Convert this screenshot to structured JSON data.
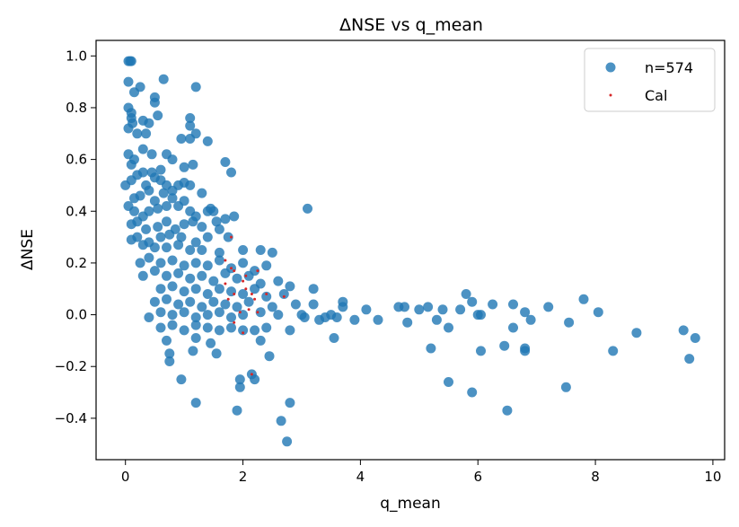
{
  "chart_data": {
    "type": "scatter",
    "title": "ΔNSE vs q_mean",
    "xlabel": "q_mean",
    "ylabel": "ΔNSE",
    "xlim": [
      -0.5,
      10.2
    ],
    "ylim": [
      -0.56,
      1.06
    ],
    "xticks": [
      0,
      2,
      4,
      6,
      8,
      10
    ],
    "xtick_labels": [
      "0",
      "2",
      "4",
      "6",
      "8",
      "10"
    ],
    "yticks": [
      -0.4,
      -0.2,
      0.0,
      0.2,
      0.4,
      0.6,
      0.8,
      1.0
    ],
    "ytick_labels": [
      "−0.4",
      "−0.2",
      "0.0",
      "0.2",
      "0.4",
      "0.6",
      "0.8",
      "1.0"
    ],
    "grid": false,
    "legend_position": "top-right",
    "legend": [
      "n=574",
      "Cal"
    ],
    "series": [
      {
        "name": "n=574",
        "color": "#1f77b4",
        "points": [
          [
            0.05,
            0.98
          ],
          [
            0.08,
            0.98
          ],
          [
            0.1,
            0.98
          ],
          [
            0.05,
            0.9
          ],
          [
            0.15,
            0.86
          ],
          [
            0.25,
            0.88
          ],
          [
            0.65,
            0.91
          ],
          [
            1.2,
            0.88
          ],
          [
            0.05,
            0.8
          ],
          [
            0.1,
            0.78
          ],
          [
            0.1,
            0.76
          ],
          [
            0.12,
            0.74
          ],
          [
            0.05,
            0.72
          ],
          [
            0.2,
            0.7
          ],
          [
            0.3,
            0.75
          ],
          [
            0.4,
            0.74
          ],
          [
            0.5,
            0.82
          ],
          [
            0.5,
            0.84
          ],
          [
            0.55,
            0.77
          ],
          [
            0.35,
            0.7
          ],
          [
            1.1,
            0.76
          ],
          [
            1.1,
            0.73
          ],
          [
            1.2,
            0.7
          ],
          [
            0.95,
            0.68
          ],
          [
            1.1,
            0.68
          ],
          [
            1.4,
            0.67
          ],
          [
            0.05,
            0.62
          ],
          [
            0.1,
            0.58
          ],
          [
            0.15,
            0.6
          ],
          [
            0.3,
            0.64
          ],
          [
            0.45,
            0.62
          ],
          [
            0.6,
            0.56
          ],
          [
            0.7,
            0.62
          ],
          [
            0.8,
            0.6
          ],
          [
            1.0,
            0.57
          ],
          [
            1.15,
            0.58
          ],
          [
            1.7,
            0.59
          ],
          [
            1.8,
            0.55
          ],
          [
            0.0,
            0.5
          ],
          [
            0.1,
            0.52
          ],
          [
            0.2,
            0.54
          ],
          [
            0.3,
            0.55
          ],
          [
            0.35,
            0.5
          ],
          [
            0.45,
            0.55
          ],
          [
            0.5,
            0.53
          ],
          [
            0.6,
            0.52
          ],
          [
            0.7,
            0.5
          ],
          [
            0.8,
            0.48
          ],
          [
            0.9,
            0.5
          ],
          [
            1.0,
            0.51
          ],
          [
            1.1,
            0.5
          ],
          [
            0.15,
            0.45
          ],
          [
            0.25,
            0.46
          ],
          [
            0.4,
            0.48
          ],
          [
            0.5,
            0.44
          ],
          [
            0.65,
            0.47
          ],
          [
            0.8,
            0.45
          ],
          [
            1.0,
            0.44
          ],
          [
            1.3,
            0.47
          ],
          [
            0.05,
            0.42
          ],
          [
            0.15,
            0.4
          ],
          [
            0.3,
            0.38
          ],
          [
            0.4,
            0.4
          ],
          [
            0.55,
            0.41
          ],
          [
            0.7,
            0.42
          ],
          [
            0.9,
            0.42
          ],
          [
            1.1,
            0.4
          ],
          [
            1.2,
            0.38
          ],
          [
            1.4,
            0.4
          ],
          [
            1.45,
            0.41
          ],
          [
            1.5,
            0.4
          ],
          [
            1.85,
            0.38
          ],
          [
            1.7,
            0.37
          ],
          [
            3.1,
            0.41
          ],
          [
            0.1,
            0.35
          ],
          [
            0.2,
            0.36
          ],
          [
            0.35,
            0.33
          ],
          [
            0.55,
            0.34
          ],
          [
            0.7,
            0.36
          ],
          [
            0.85,
            0.33
          ],
          [
            1.0,
            0.35
          ],
          [
            1.15,
            0.36
          ],
          [
            1.3,
            0.34
          ],
          [
            1.55,
            0.36
          ],
          [
            1.6,
            0.33
          ],
          [
            0.2,
            0.3
          ],
          [
            0.4,
            0.28
          ],
          [
            0.6,
            0.3
          ],
          [
            0.75,
            0.31
          ],
          [
            0.95,
            0.3
          ],
          [
            1.2,
            0.28
          ],
          [
            1.4,
            0.3
          ],
          [
            1.75,
            0.3
          ],
          [
            0.1,
            0.29
          ],
          [
            0.3,
            0.27
          ],
          [
            0.5,
            0.26
          ],
          [
            0.7,
            0.26
          ],
          [
            0.9,
            0.27
          ],
          [
            1.1,
            0.25
          ],
          [
            1.3,
            0.25
          ],
          [
            1.6,
            0.24
          ],
          [
            2.0,
            0.25
          ],
          [
            2.3,
            0.25
          ],
          [
            2.5,
            0.24
          ],
          [
            0.25,
            0.2
          ],
          [
            0.4,
            0.22
          ],
          [
            0.6,
            0.2
          ],
          [
            0.8,
            0.21
          ],
          [
            1.0,
            0.19
          ],
          [
            1.2,
            0.2
          ],
          [
            1.4,
            0.19
          ],
          [
            1.6,
            0.21
          ],
          [
            1.8,
            0.18
          ],
          [
            2.0,
            0.2
          ],
          [
            2.2,
            0.17
          ],
          [
            2.4,
            0.19
          ],
          [
            0.3,
            0.15
          ],
          [
            0.5,
            0.17
          ],
          [
            0.7,
            0.15
          ],
          [
            0.9,
            0.16
          ],
          [
            1.1,
            0.14
          ],
          [
            1.3,
            0.15
          ],
          [
            1.5,
            0.13
          ],
          [
            1.7,
            0.16
          ],
          [
            1.9,
            0.14
          ],
          [
            2.1,
            0.15
          ],
          [
            2.3,
            0.12
          ],
          [
            2.6,
            0.13
          ],
          [
            2.8,
            0.11
          ],
          [
            0.6,
            0.1
          ],
          [
            0.8,
            0.11
          ],
          [
            1.0,
            0.09
          ],
          [
            1.2,
            0.1
          ],
          [
            1.4,
            0.08
          ],
          [
            1.6,
            0.1
          ],
          [
            1.8,
            0.09
          ],
          [
            2.0,
            0.08
          ],
          [
            2.2,
            0.1
          ],
          [
            2.4,
            0.07
          ],
          [
            2.7,
            0.08
          ],
          [
            3.2,
            0.1
          ],
          [
            0.5,
            0.05
          ],
          [
            0.7,
            0.06
          ],
          [
            0.9,
            0.04
          ],
          [
            1.1,
            0.05
          ],
          [
            1.3,
            0.03
          ],
          [
            1.5,
            0.05
          ],
          [
            1.7,
            0.04
          ],
          [
            1.9,
            0.03
          ],
          [
            2.1,
            0.05
          ],
          [
            2.5,
            0.03
          ],
          [
            2.9,
            0.04
          ],
          [
            3.2,
            0.04
          ],
          [
            3.7,
            0.05
          ],
          [
            0.4,
            -0.01
          ],
          [
            0.6,
            0.01
          ],
          [
            0.8,
            0.0
          ],
          [
            1.0,
            0.01
          ],
          [
            1.2,
            -0.01
          ],
          [
            1.4,
            0.0
          ],
          [
            1.6,
            0.01
          ],
          [
            1.8,
            -0.01
          ],
          [
            2.0,
            0.0
          ],
          [
            2.3,
            0.01
          ],
          [
            2.6,
            0.0
          ],
          [
            3.0,
            0.0
          ],
          [
            3.4,
            -0.01
          ],
          [
            3.6,
            -0.01
          ],
          [
            3.9,
            -0.02
          ],
          [
            4.3,
            -0.02
          ],
          [
            4.65,
            0.03
          ],
          [
            4.75,
            0.03
          ],
          [
            5.0,
            0.02
          ],
          [
            5.15,
            0.03
          ],
          [
            5.4,
            0.02
          ],
          [
            5.7,
            0.02
          ],
          [
            5.8,
            0.08
          ],
          [
            5.9,
            0.05
          ],
          [
            6.0,
            0.0
          ],
          [
            6.05,
            0.0
          ],
          [
            6.25,
            0.04
          ],
          [
            6.6,
            0.04
          ],
          [
            6.8,
            0.01
          ],
          [
            7.2,
            0.03
          ],
          [
            8.05,
            0.01
          ],
          [
            7.8,
            0.06
          ],
          [
            4.1,
            0.02
          ],
          [
            3.7,
            0.03
          ],
          [
            3.5,
            0.0
          ],
          [
            3.3,
            -0.02
          ],
          [
            3.05,
            -0.01
          ],
          [
            0.6,
            -0.05
          ],
          [
            0.8,
            -0.04
          ],
          [
            1.0,
            -0.06
          ],
          [
            1.2,
            -0.04
          ],
          [
            1.4,
            -0.05
          ],
          [
            1.6,
            -0.06
          ],
          [
            1.8,
            -0.05
          ],
          [
            2.0,
            -0.06
          ],
          [
            2.2,
            -0.06
          ],
          [
            2.4,
            -0.05
          ],
          [
            2.8,
            -0.06
          ],
          [
            4.8,
            -0.03
          ],
          [
            5.3,
            -0.02
          ],
          [
            5.5,
            -0.05
          ],
          [
            6.6,
            -0.05
          ],
          [
            6.9,
            -0.02
          ],
          [
            7.55,
            -0.03
          ],
          [
            8.7,
            -0.07
          ],
          [
            9.5,
            -0.06
          ],
          [
            9.7,
            -0.09
          ],
          [
            3.55,
            -0.09
          ],
          [
            0.7,
            -0.1
          ],
          [
            1.2,
            -0.09
          ],
          [
            1.45,
            -0.11
          ],
          [
            2.3,
            -0.1
          ],
          [
            0.75,
            -0.15
          ],
          [
            1.15,
            -0.14
          ],
          [
            1.55,
            -0.15
          ],
          [
            5.2,
            -0.13
          ],
          [
            6.05,
            -0.14
          ],
          [
            6.45,
            -0.12
          ],
          [
            6.8,
            -0.13
          ],
          [
            6.8,
            -0.14
          ],
          [
            8.3,
            -0.14
          ],
          [
            9.6,
            -0.17
          ],
          [
            0.75,
            -0.18
          ],
          [
            2.45,
            -0.16
          ],
          [
            0.95,
            -0.25
          ],
          [
            1.95,
            -0.25
          ],
          [
            1.95,
            -0.28
          ],
          [
            2.15,
            -0.23
          ],
          [
            2.2,
            -0.25
          ],
          [
            5.5,
            -0.26
          ],
          [
            7.5,
            -0.28
          ],
          [
            1.2,
            -0.34
          ],
          [
            1.9,
            -0.37
          ],
          [
            2.8,
            -0.34
          ],
          [
            5.9,
            -0.3
          ],
          [
            6.5,
            -0.37
          ],
          [
            2.65,
            -0.41
          ],
          [
            2.75,
            -0.49
          ]
        ]
      },
      {
        "name": "Cal",
        "color": "#d62728",
        "points": [
          [
            1.8,
            0.3
          ],
          [
            1.7,
            0.21
          ],
          [
            1.8,
            0.18
          ],
          [
            1.85,
            0.17
          ],
          [
            2.25,
            0.17
          ],
          [
            2.05,
            0.15
          ],
          [
            1.7,
            0.12
          ],
          [
            2.0,
            0.13
          ],
          [
            2.05,
            0.1
          ],
          [
            1.85,
            0.08
          ],
          [
            2.15,
            0.08
          ],
          [
            2.4,
            0.08
          ],
          [
            1.75,
            0.06
          ],
          [
            2.2,
            0.06
          ],
          [
            2.7,
            0.07
          ],
          [
            2.1,
            0.02
          ],
          [
            2.25,
            0.01
          ],
          [
            1.95,
            0.01
          ],
          [
            1.85,
            -0.03
          ],
          [
            2.0,
            -0.07
          ],
          [
            2.15,
            -0.23
          ]
        ]
      }
    ]
  }
}
